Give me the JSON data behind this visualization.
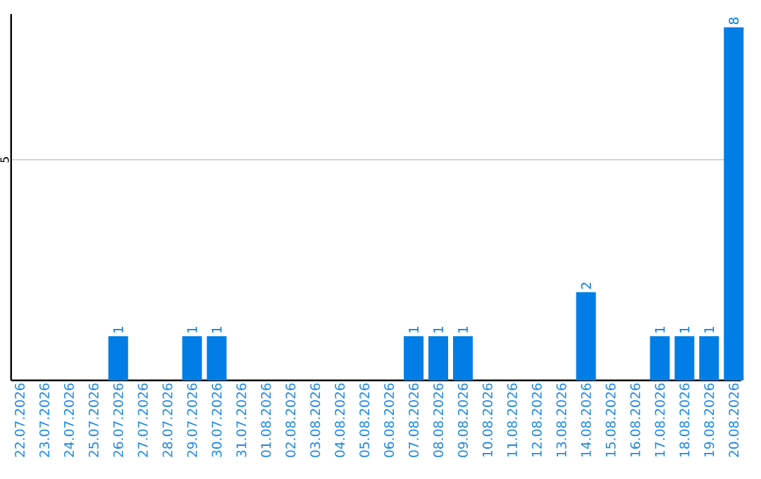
{
  "chart_data": {
    "type": "bar",
    "categories": [
      "22.07.2026",
      "23.07.2026",
      "24.07.2026",
      "25.07.2026",
      "26.07.2026",
      "27.07.2026",
      "28.07.2026",
      "29.07.2026",
      "30.07.2026",
      "31.07.2026",
      "01.08.2026",
      "02.08.2026",
      "03.08.2026",
      "04.08.2026",
      "05.08.2026",
      "06.08.2026",
      "07.08.2026",
      "08.08.2026",
      "09.08.2026",
      "10.08.2026",
      "11.08.2026",
      "12.08.2026",
      "13.08.2026",
      "14.08.2026",
      "15.08.2026",
      "16.08.2026",
      "17.08.2026",
      "18.08.2026",
      "19.08.2026",
      "20.08.2026"
    ],
    "values": [
      0,
      0,
      0,
      0,
      1,
      0,
      0,
      1,
      1,
      0,
      0,
      0,
      0,
      0,
      0,
      0,
      1,
      1,
      1,
      0,
      0,
      0,
      0,
      2,
      0,
      0,
      1,
      1,
      1,
      8
    ],
    "value_labels": [
      null,
      null,
      null,
      null,
      "1",
      null,
      null,
      "1",
      "1",
      null,
      null,
      null,
      null,
      null,
      null,
      null,
      "1",
      "1",
      "1",
      null,
      null,
      null,
      null,
      "2",
      null,
      null,
      "1",
      "1",
      "1",
      "8"
    ],
    "color": "#007ee5",
    "ylim": [
      0,
      8.3
    ],
    "yticks": [
      5
    ],
    "grid": "y"
  }
}
